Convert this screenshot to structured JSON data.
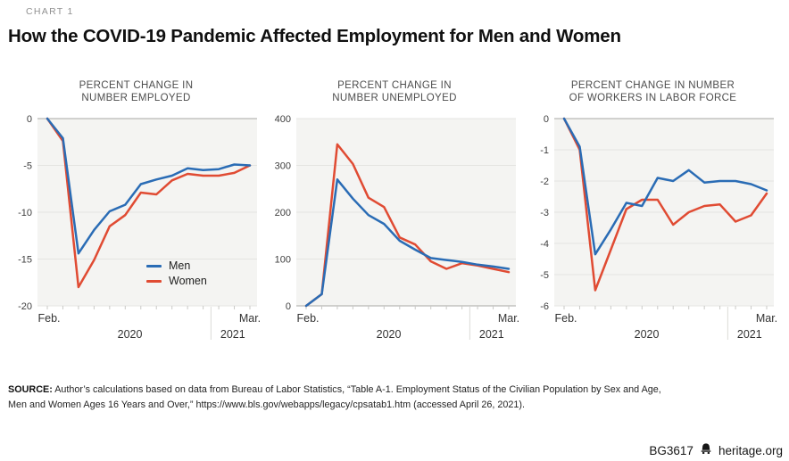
{
  "header": {
    "chart_label": "CHART 1",
    "title": "How the COVID-19 Pandemic Affected Employment for Men and Women"
  },
  "legend": {
    "items": [
      {
        "label": "Men",
        "color": "#2a6cb5"
      },
      {
        "label": "Women",
        "color": "#e04b33"
      }
    ]
  },
  "colors": {
    "men": "#2a6cb5",
    "women": "#e04b33",
    "plot_bg": "#f4f4f2",
    "gridline": "#e4e4e1",
    "zero_line": "#a7a7a4",
    "tick": "#c9c9c6",
    "year_separator": "#dadad7"
  },
  "chart_data": [
    {
      "type": "line",
      "title": "PERCENT CHANGE IN NUMBER EMPLOYED",
      "title_lines": [
        "PERCENT CHANGE IN",
        "NUMBER EMPLOYED"
      ],
      "x": [
        "Feb. 2020",
        "Mar. 2020",
        "Apr. 2020",
        "May 2020",
        "Jun. 2020",
        "Jul. 2020",
        "Aug. 2020",
        "Sep. 2020",
        "Oct. 2020",
        "Nov. 2020",
        "Dec. 2020",
        "Jan. 2021",
        "Feb. 2021",
        "Mar. 2021"
      ],
      "series": [
        {
          "name": "Men",
          "values": [
            0,
            -2.1,
            -14.4,
            -11.9,
            -9.9,
            -9.2,
            -7.0,
            -6.5,
            -6.1,
            -5.3,
            -5.5,
            -5.4,
            -4.9,
            -5.0
          ]
        },
        {
          "name": "Women",
          "values": [
            0,
            -2.4,
            -18.0,
            -15.1,
            -11.5,
            -10.3,
            -7.9,
            -8.1,
            -6.6,
            -5.9,
            -6.1,
            -6.1,
            -5.8,
            -5.0
          ]
        }
      ],
      "ylim": [
        -20,
        0
      ],
      "yticks": [
        0,
        -5,
        -10,
        -15,
        -20
      ],
      "xaxis": {
        "first": "Feb.",
        "last": "Mar.",
        "year_left": "2020",
        "year_right": "2021"
      },
      "legend_visible": true,
      "grid": true
    },
    {
      "type": "line",
      "title": "PERCENT CHANGE IN NUMBER UNEMPLOYED",
      "title_lines": [
        "PERCENT CHANGE IN",
        "NUMBER UNEMPLOYED"
      ],
      "x": [
        "Feb. 2020",
        "Mar. 2020",
        "Apr. 2020",
        "May 2020",
        "Jun. 2020",
        "Jul. 2020",
        "Aug. 2020",
        "Sep. 2020",
        "Oct. 2020",
        "Nov. 2020",
        "Dec. 2020",
        "Jan. 2021",
        "Feb. 2021",
        "Mar. 2021"
      ],
      "series": [
        {
          "name": "Men",
          "values": [
            0,
            25,
            270,
            229,
            194,
            175,
            139,
            120,
            102,
            98,
            94,
            88,
            84,
            79
          ]
        },
        {
          "name": "Women",
          "values": [
            0,
            25,
            345,
            303,
            231,
            211,
            146,
            131,
            95,
            79,
            91,
            86,
            79,
            72
          ]
        }
      ],
      "ylim": [
        0,
        400
      ],
      "yticks": [
        400,
        300,
        200,
        100,
        0
      ],
      "xaxis": {
        "first": "Feb.",
        "last": "Mar.",
        "year_left": "2020",
        "year_right": "2021"
      },
      "legend_visible": false,
      "grid": true
    },
    {
      "type": "line",
      "title": "PERCENT CHANGE IN NUMBER OF WORKERS IN LABOR FORCE",
      "title_lines": [
        "PERCENT CHANGE IN NUMBER",
        "OF WORKERS IN LABOR FORCE"
      ],
      "x": [
        "Feb. 2020",
        "Mar. 2020",
        "Apr. 2020",
        "May 2020",
        "Jun. 2020",
        "Jul. 2020",
        "Aug. 2020",
        "Sep. 2020",
        "Oct. 2020",
        "Nov. 2020",
        "Dec. 2020",
        "Jan. 2021",
        "Feb. 2021",
        "Mar. 2021"
      ],
      "series": [
        {
          "name": "Men",
          "values": [
            0,
            -0.9,
            -4.35,
            -3.55,
            -2.7,
            -2.8,
            -1.9,
            -2.0,
            -1.65,
            -2.05,
            -2.0,
            -2.0,
            -2.1,
            -2.3
          ]
        },
        {
          "name": "Women",
          "values": [
            0,
            -1.0,
            -5.5,
            -4.2,
            -2.9,
            -2.6,
            -2.6,
            -3.4,
            -3.0,
            -2.8,
            -2.75,
            -3.3,
            -3.1,
            -2.4
          ]
        }
      ],
      "ylim": [
        -6,
        0
      ],
      "yticks": [
        0,
        -1,
        -2,
        -3,
        -4,
        -5,
        -6
      ],
      "xaxis": {
        "first": "Feb.",
        "last": "Mar.",
        "year_left": "2020",
        "year_right": "2021"
      },
      "legend_visible": false,
      "grid": true
    }
  ],
  "footer": {
    "source_label": "SOURCE:",
    "source_line1": "Author’s calculations based on data from Bureau of Labor Statistics, “Table A-1. Employment Status of the Civilian Population by Sex and Age,",
    "source_line2": "Men and Women Ages 16 Years and Over,” https://www.bls.gov/webapps/legacy/cpsatab1.htm (accessed April 26, 2021).",
    "doc_id": "BG3617",
    "website": "heritage.org"
  }
}
